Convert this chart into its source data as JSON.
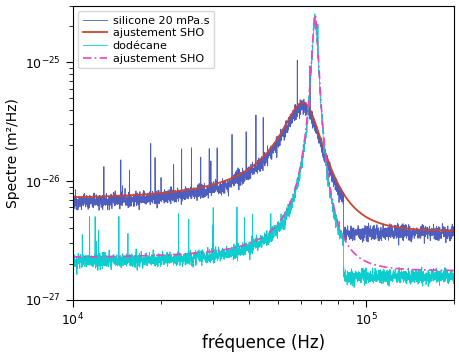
{
  "xlim": [
    10000,
    200000
  ],
  "ylim": [
    1e-27,
    3e-25
  ],
  "xlabel": "fréquence (Hz)",
  "ylabel": "Spectre (m²/Hz)",
  "legend_labels": [
    "silicone 20 mPa.s",
    "ajustement SHO",
    "dodécane",
    "ajustement SHO"
  ],
  "silicone_color": "#4455bb",
  "fit_silicone_color": "#cc4433",
  "dodecane_color": "#00cccc",
  "fit_dodecane_color": "#ee44bb",
  "f0_sil": 62000,
  "Q_sil": 3.5,
  "baseline_sil": 3.5e-27,
  "peak_sil": 4.5e-26,
  "f0_dod": 67000,
  "Q_dod": 22.0,
  "baseline_dod": 1.8e-27,
  "peak_dod": 2.5e-25,
  "noise_sil": 0.07,
  "noise_dod": 0.07,
  "xlabel_fontsize": 12,
  "ylabel_fontsize": 10,
  "tick_labelsize": 9,
  "legend_fontsize": 8
}
